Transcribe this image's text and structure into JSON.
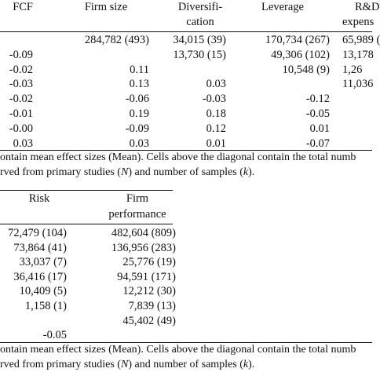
{
  "table1": {
    "headers": {
      "fcf": "FCF",
      "firm_size": "Firm size",
      "diversification_line1": "Diversifi-",
      "diversification_line2": "cation",
      "leverage": "Leverage",
      "rd_line1": "R&D",
      "rd_line2": "expens"
    },
    "rows": [
      {
        "fcf": "",
        "firm_size": "284,782 (493)",
        "diversification": "34,015 (39)",
        "leverage": "170,734 (267)",
        "rd": "65,989 ("
      },
      {
        "fcf": "-0.09",
        "firm_size": "",
        "diversification": "13,730 (15)",
        "leverage": "49,306 (102)",
        "rd": "13,178"
      },
      {
        "fcf": "-0.02",
        "firm_size": "0.11",
        "diversification": "",
        "leverage": "10,548 (9)",
        "rd": "1,26"
      },
      {
        "fcf": "-0.03",
        "firm_size": "0.13",
        "diversification": "0.03",
        "leverage": "",
        "rd": "11,036"
      },
      {
        "fcf": "-0.02",
        "firm_size": "-0.06",
        "diversification": "-0.03",
        "leverage": "-0.12",
        "rd": ""
      },
      {
        "fcf": "-0.01",
        "firm_size": "0.19",
        "diversification": "0.18",
        "leverage": "-0.05",
        "rd": ""
      },
      {
        "fcf": "-0.00",
        "firm_size": "-0.09",
        "diversification": "0.12",
        "leverage": "0.01",
        "rd": ""
      },
      {
        "fcf": "0.03",
        "firm_size": "0.03",
        "diversification": "0.01",
        "leverage": "-0.07",
        "rd": ""
      }
    ],
    "note_line1": "ontain mean effect sizes (Mean). Cells above the diagonal contain the total numb",
    "note_line2_a": "rved from primary studies (",
    "note_line2_n": "N",
    "note_line2_b": ") and number of samples (",
    "note_line2_k": "k",
    "note_line2_c": ")."
  },
  "table2": {
    "headers": {
      "risk": "Risk",
      "perf_line1": "Firm",
      "perf_line2": "performance"
    },
    "rows": [
      {
        "risk": "72,479 (104)",
        "performance": "482,604 (809)"
      },
      {
        "risk": "73,864 (41)",
        "performance": "136,956 (283)"
      },
      {
        "risk": "33,037 (7)",
        "performance": "25,776 (19)"
      },
      {
        "risk": "36,416 (17)",
        "performance": "94,591 (171)"
      },
      {
        "risk": "10,409 (5)",
        "performance": "12,212 (30)"
      },
      {
        "risk": "1,158 (1)",
        "performance": "7,839 (13)"
      },
      {
        "risk": "",
        "performance": "45,402 (49)"
      },
      {
        "risk": "-0.05",
        "performance": ""
      }
    ],
    "note_line1": "ontain mean effect sizes (Mean). Cells above the diagonal contain the total numb",
    "note_line2_a": "rved from primary studies (",
    "note_line2_n": "N",
    "note_line2_b": ") and number of samples (",
    "note_line2_k": "k",
    "note_line2_c": ")."
  }
}
